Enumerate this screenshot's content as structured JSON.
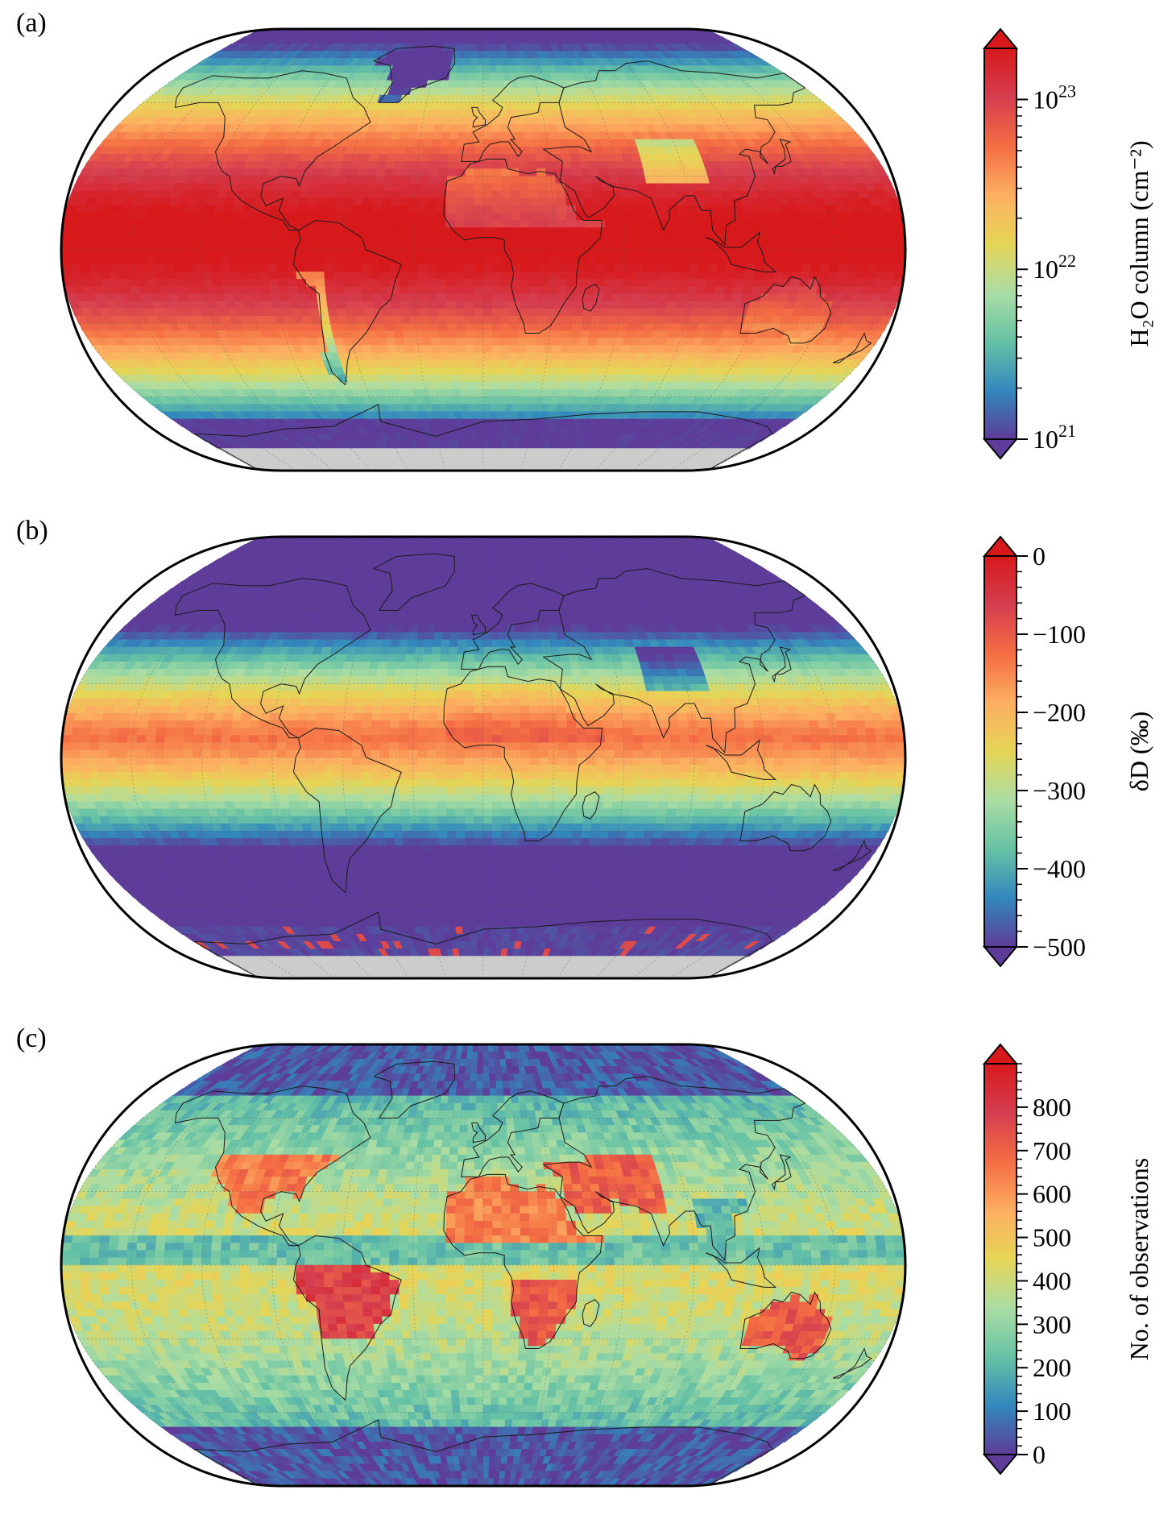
{
  "panels": [
    {
      "letter": "(a)",
      "colorbar": {
        "label": "H₂O column (cm⁻²)",
        "scale": "log",
        "range": [
          1e+21,
          2e+23
        ],
        "ticks": [
          {
            "value": 1e+21,
            "base": "10",
            "exp": "21"
          },
          {
            "value": 1e+22,
            "base": "10",
            "exp": "22"
          },
          {
            "value": 1e+23,
            "base": "10",
            "exp": "23"
          }
        ]
      },
      "field": "h2o"
    },
    {
      "letter": "(b)",
      "colorbar": {
        "label": "δD (‰)",
        "scale": "linear",
        "range": [
          -500,
          0
        ],
        "ticks": [
          {
            "value": 0,
            "text": "0"
          },
          {
            "value": -100,
            "text": "−100"
          },
          {
            "value": -200,
            "text": "−200"
          },
          {
            "value": -300,
            "text": "−300"
          },
          {
            "value": -400,
            "text": "−400"
          },
          {
            "value": -500,
            "text": "−500"
          }
        ]
      },
      "field": "dd"
    },
    {
      "letter": "(c)",
      "colorbar": {
        "label": "No. of observations",
        "scale": "linear",
        "range": [
          0,
          900
        ],
        "ticks": [
          {
            "value": 0,
            "text": "0"
          },
          {
            "value": 100,
            "text": "100"
          },
          {
            "value": 200,
            "text": "200"
          },
          {
            "value": 300,
            "text": "300"
          },
          {
            "value": 400,
            "text": "400"
          },
          {
            "value": 500,
            "text": "500"
          },
          {
            "value": 600,
            "text": "600"
          },
          {
            "value": 700,
            "text": "700"
          },
          {
            "value": 800,
            "text": "800"
          }
        ]
      },
      "field": "obs"
    }
  ],
  "colormap": [
    "#5e3c99",
    "#3288bd",
    "#66c2a5",
    "#abdda4",
    "#e6d556",
    "#fdae61",
    "#f46d43",
    "#d53e4f",
    "#d7191c"
  ]
}
